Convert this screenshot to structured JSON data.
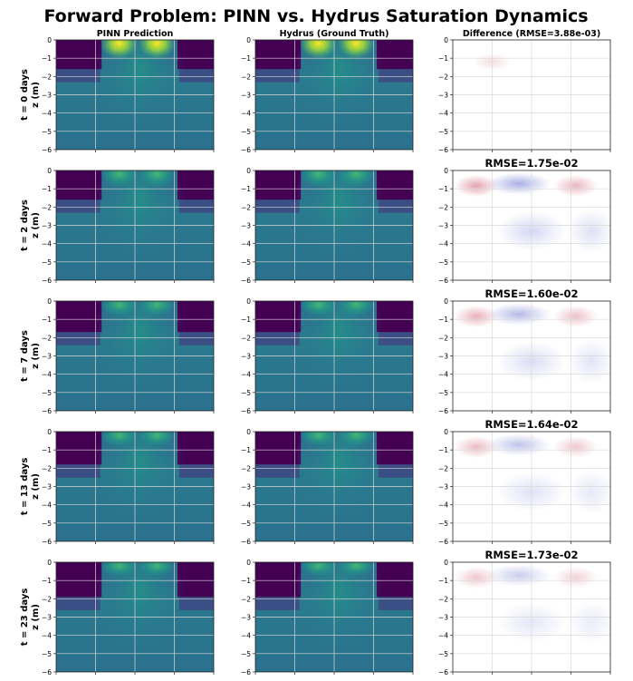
{
  "title": "Forward Problem: PINN vs. Hydrus Saturation Dynamics",
  "columns": [
    "PINN Prediction",
    "Hydrus (Ground Truth)",
    "Difference (RMSE=3.88e-03)"
  ],
  "colors": {
    "viridis": [
      "#440154",
      "#46327e",
      "#365c8d",
      "#277f8e",
      "#1fa187",
      "#4ac16d",
      "#a0da39",
      "#fde725"
    ],
    "diff_neg": "#3b4cc0",
    "diff_zero": "#ffffff",
    "diff_pos": "#b40426",
    "grid": "#d8d8d8"
  },
  "chart_data": {
    "type": "heatmap",
    "ylabel": "z (m)",
    "yticks": [
      "0",
      "−1",
      "−2",
      "−3",
      "−4",
      "−5",
      "−6"
    ],
    "ylim": [
      -6,
      0
    ],
    "grid": true,
    "rows": [
      {
        "label": "t = 0 days",
        "rmse_title": "",
        "front_depth": 1.6,
        "wet_strength": 0.95,
        "diff_amp": 0.05
      },
      {
        "label": "t = 2 days",
        "rmse_title": "RMSE=1.75e-02",
        "front_depth": 1.6,
        "wet_strength": 0.7,
        "diff_amp": 0.4
      },
      {
        "label": "t = 7 days",
        "rmse_title": "RMSE=1.60e-02",
        "front_depth": 1.7,
        "wet_strength": 0.55,
        "diff_amp": 0.35
      },
      {
        "label": "t = 13 days",
        "rmse_title": "RMSE=1.64e-02",
        "front_depth": 1.8,
        "wet_strength": 0.5,
        "diff_amp": 0.3
      },
      {
        "label": "t = 23 days",
        "rmse_title": "RMSE=1.73e-02",
        "front_depth": 1.9,
        "wet_strength": 0.45,
        "diff_amp": 0.25
      }
    ]
  }
}
